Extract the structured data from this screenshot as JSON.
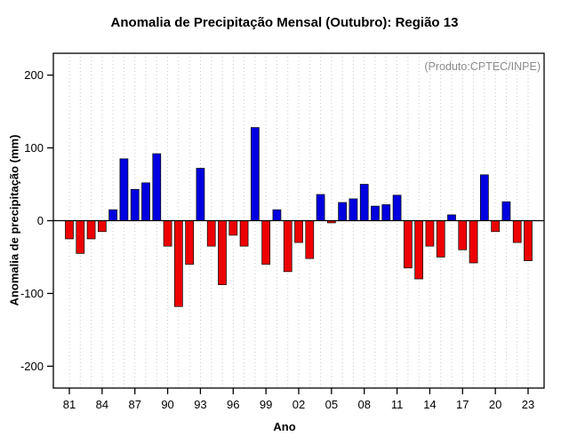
{
  "chart_data": {
    "type": "bar",
    "title": "Anomalia de Precipitação Mensal (Outubro): Região 13",
    "annotation": "(Produto:CPTEC/INPE)",
    "xlabel": "Ano",
    "ylabel": "Anomalia de precipitação (mm)",
    "categories": [
      "81",
      "82",
      "83",
      "84",
      "85",
      "86",
      "87",
      "88",
      "89",
      "90",
      "91",
      "92",
      "93",
      "94",
      "95",
      "96",
      "97",
      "98",
      "99",
      "00",
      "01",
      "02",
      "03",
      "04",
      "05",
      "06",
      "07",
      "08",
      "09",
      "10",
      "11",
      "12",
      "13",
      "14",
      "15",
      "16",
      "17",
      "18",
      "19",
      "20",
      "21",
      "22",
      "23"
    ],
    "values": [
      -25,
      -45,
      -25,
      -15,
      15,
      85,
      43,
      52,
      92,
      -35,
      -118,
      -60,
      72,
      -35,
      -88,
      -20,
      -35,
      128,
      -60,
      15,
      -70,
      -30,
      -52,
      36,
      -3,
      25,
      30,
      50,
      20,
      22,
      35,
      -65,
      -80,
      -35,
      -50,
      8,
      -40,
      -58,
      63,
      -15,
      26,
      -30,
      -55
    ],
    "yticks": [
      -200,
      -100,
      0,
      100,
      200
    ],
    "ylim": [
      -230,
      230
    ],
    "xtick_every": 3,
    "xtick_labels": [
      "81",
      "84",
      "87",
      "90",
      "93",
      "96",
      "99",
      "02",
      "05",
      "08",
      "11",
      "14",
      "17",
      "20",
      "23"
    ],
    "positive_color": "#0000e0",
    "negative_color": "#ee0000",
    "bar_border_color": "#000000",
    "grid_color": "#c9c9c9",
    "grid": "dotted-vertical",
    "legend": "none"
  }
}
